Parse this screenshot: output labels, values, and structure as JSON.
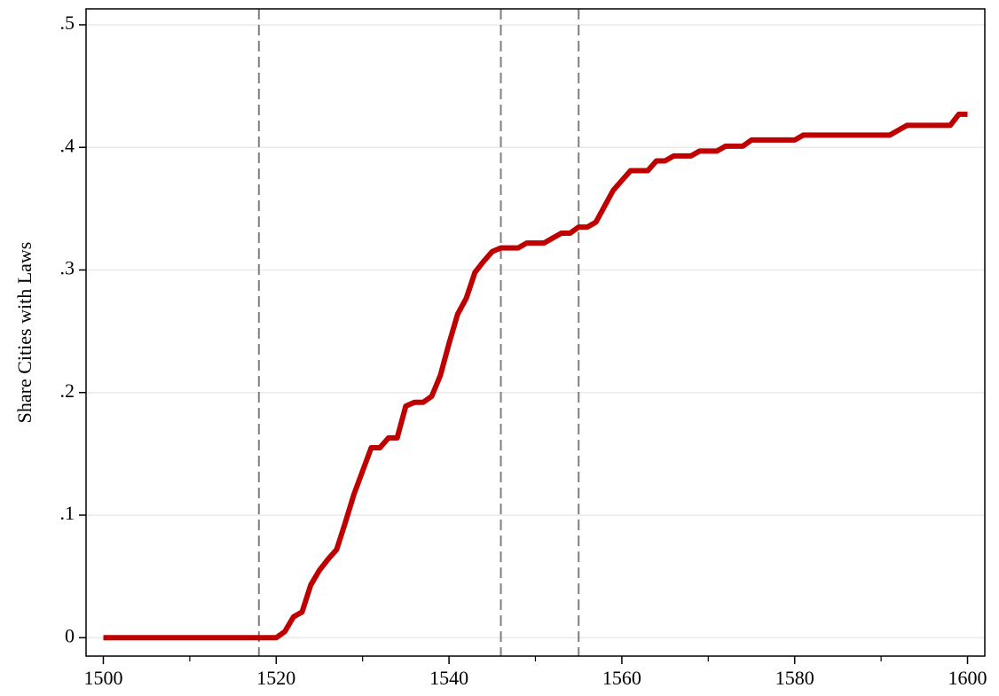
{
  "chart_data": {
    "type": "line",
    "y_label": "Share Cities with Laws",
    "x": [
      1500,
      1501,
      1502,
      1503,
      1504,
      1505,
      1506,
      1507,
      1508,
      1509,
      1510,
      1511,
      1512,
      1513,
      1514,
      1515,
      1516,
      1517,
      1518,
      1519,
      1520,
      1521,
      1522,
      1523,
      1524,
      1525,
      1526,
      1527,
      1528,
      1529,
      1530,
      1531,
      1532,
      1533,
      1534,
      1535,
      1536,
      1537,
      1538,
      1539,
      1540,
      1541,
      1542,
      1543,
      1544,
      1545,
      1546,
      1547,
      1548,
      1549,
      1550,
      1551,
      1552,
      1553,
      1554,
      1555,
      1556,
      1557,
      1558,
      1559,
      1560,
      1561,
      1562,
      1563,
      1564,
      1565,
      1566,
      1567,
      1568,
      1569,
      1570,
      1571,
      1572,
      1573,
      1574,
      1575,
      1576,
      1577,
      1578,
      1579,
      1580,
      1581,
      1582,
      1583,
      1584,
      1585,
      1586,
      1587,
      1588,
      1589,
      1590,
      1591,
      1592,
      1593,
      1594,
      1595,
      1596,
      1597,
      1598,
      1599,
      1600
    ],
    "series": [
      {
        "color": "#c00000",
        "values": [
          0,
          0,
          0,
          0,
          0,
          0,
          0,
          0,
          0,
          0,
          0,
          0,
          0,
          0,
          0,
          0,
          0,
          0,
          0,
          0,
          0,
          0.005,
          0.017,
          0.021,
          0.043,
          0.055,
          0.064,
          0.072,
          0.094,
          0.117,
          0.136,
          0.155,
          0.155,
          0.163,
          0.163,
          0.189,
          0.192,
          0.192,
          0.197,
          0.214,
          0.24,
          0.264,
          0.277,
          0.298,
          0.307,
          0.315,
          0.318,
          0.318,
          0.318,
          0.322,
          0.322,
          0.322,
          0.326,
          0.33,
          0.33,
          0.335,
          0.335,
          0.339,
          0.352,
          0.365,
          0.373,
          0.381,
          0.381,
          0.381,
          0.389,
          0.389,
          0.393,
          0.393,
          0.393,
          0.397,
          0.397,
          0.397,
          0.401,
          0.401,
          0.401,
          0.406,
          0.406,
          0.406,
          0.406,
          0.406,
          0.406,
          0.41,
          0.41,
          0.41,
          0.41,
          0.41,
          0.41,
          0.41,
          0.41,
          0.41,
          0.41,
          0.41,
          0.414,
          0.418,
          0.418,
          0.418,
          0.418,
          0.418,
          0.418,
          0.427,
          0.427
        ]
      }
    ],
    "xlim": [
      1498,
      1602
    ],
    "xticks": [
      1500,
      1520,
      1540,
      1560,
      1580,
      1600
    ],
    "xminor": [
      1510,
      1530,
      1550,
      1570,
      1590
    ],
    "ylim": [
      -0.015,
      0.513
    ],
    "yticks": [
      0,
      {
        "value": 0.1,
        "label": ".1"
      },
      {
        "value": 0.2,
        "label": ".2"
      },
      {
        "value": 0.3,
        "label": ".3"
      },
      {
        "value": 0.4,
        "label": ".4"
      },
      {
        "value": 0.5,
        "label": ".5"
      }
    ],
    "vlines": [
      1518,
      1546,
      1555
    ],
    "grid": true
  }
}
